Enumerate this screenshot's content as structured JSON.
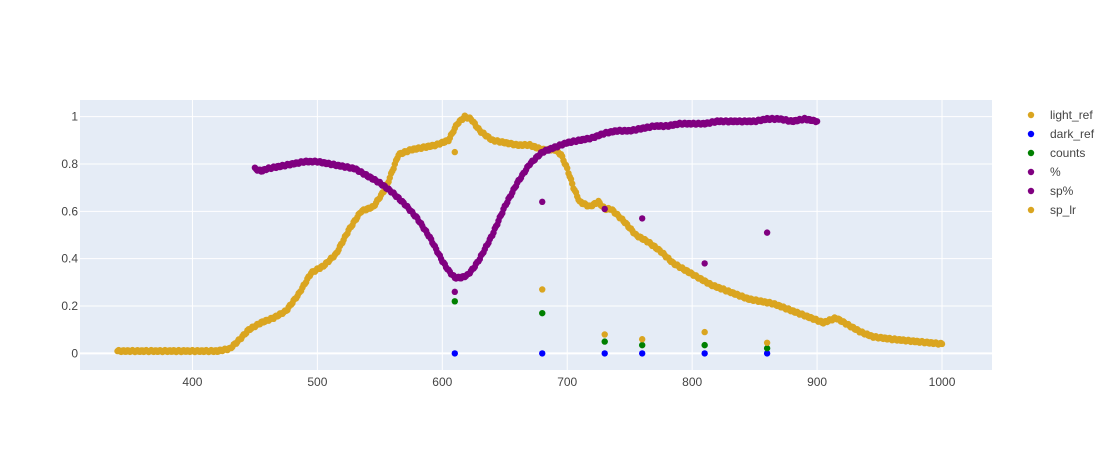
{
  "chart_data": {
    "type": "scatter",
    "title": "",
    "xlabel": "",
    "ylabel": "",
    "xlim": [
      310,
      1040
    ],
    "ylim": [
      -0.07,
      1.07
    ],
    "grid": true,
    "legend_position": "top-right",
    "x_ticks": [
      400,
      500,
      600,
      700,
      800,
      900,
      1000
    ],
    "y_ticks": [
      0,
      0.2,
      0.4,
      0.6,
      0.8,
      1
    ],
    "x_tick_labels": [
      "400",
      "500",
      "600",
      "700",
      "800",
      "900",
      "1000"
    ],
    "y_tick_labels": [
      "0",
      "0.2",
      "0.4",
      "0.6",
      "0.8",
      "1"
    ],
    "series": [
      {
        "name": "light_ref",
        "color": "#DAA520",
        "dense": true,
        "x": [
          340,
          380,
          420,
          430,
          438,
          445,
          455,
          465,
          475,
          485,
          495,
          505,
          515,
          525,
          535,
          545,
          555,
          565,
          575,
          585,
          595,
          605,
          612,
          618,
          623,
          630,
          640,
          650,
          660,
          670,
          680,
          690,
          695,
          700,
          705,
          710,
          718,
          725,
          730,
          735,
          745,
          755,
          765,
          775,
          785,
          795,
          805,
          815,
          825,
          835,
          845,
          855,
          865,
          875,
          885,
          895,
          905,
          915,
          925,
          935,
          945,
          960,
          980,
          1000
        ],
        "y": [
          0.01,
          0.01,
          0.01,
          0.02,
          0.06,
          0.1,
          0.13,
          0.15,
          0.18,
          0.25,
          0.34,
          0.37,
          0.42,
          0.52,
          0.6,
          0.62,
          0.7,
          0.84,
          0.86,
          0.87,
          0.88,
          0.9,
          0.97,
          1.0,
          0.99,
          0.94,
          0.9,
          0.89,
          0.88,
          0.88,
          0.86,
          0.86,
          0.84,
          0.78,
          0.7,
          0.64,
          0.62,
          0.64,
          0.61,
          0.61,
          0.56,
          0.5,
          0.47,
          0.43,
          0.38,
          0.35,
          0.32,
          0.29,
          0.27,
          0.25,
          0.23,
          0.22,
          0.21,
          0.19,
          0.17,
          0.15,
          0.13,
          0.15,
          0.12,
          0.09,
          0.07,
          0.06,
          0.05,
          0.04
        ]
      },
      {
        "name": "dark_ref",
        "color": "#0000FF",
        "dense": false,
        "x": [
          610,
          680,
          730,
          760,
          810,
          860
        ],
        "y": [
          0.0,
          0.0,
          0.0,
          0.0,
          0.0,
          0.0
        ]
      },
      {
        "name": "counts",
        "color": "#008000",
        "dense": false,
        "x": [
          610,
          680,
          730,
          760,
          810,
          860
        ],
        "y": [
          0.22,
          0.17,
          0.05,
          0.035,
          0.035,
          0.022
        ]
      },
      {
        "name": "%",
        "color": "#800080",
        "dense": true,
        "x": [
          450,
          455,
          460,
          470,
          480,
          490,
          500,
          510,
          520,
          530,
          540,
          550,
          560,
          570,
          580,
          590,
          600,
          605,
          610,
          615,
          620,
          625,
          630,
          640,
          650,
          660,
          670,
          680,
          690,
          700,
          710,
          720,
          730,
          740,
          750,
          760,
          770,
          780,
          790,
          800,
          810,
          820,
          830,
          840,
          850,
          860,
          870,
          880,
          890,
          900
        ],
        "y": [
          0.78,
          0.77,
          0.78,
          0.79,
          0.8,
          0.81,
          0.81,
          0.8,
          0.79,
          0.78,
          0.75,
          0.72,
          0.68,
          0.63,
          0.57,
          0.49,
          0.39,
          0.35,
          0.32,
          0.32,
          0.33,
          0.36,
          0.4,
          0.5,
          0.62,
          0.72,
          0.8,
          0.85,
          0.87,
          0.89,
          0.9,
          0.91,
          0.93,
          0.94,
          0.94,
          0.95,
          0.96,
          0.96,
          0.97,
          0.97,
          0.97,
          0.98,
          0.98,
          0.98,
          0.98,
          0.99,
          0.99,
          0.98,
          0.99,
          0.98
        ]
      },
      {
        "name": "sp%",
        "color": "#800080",
        "dense": false,
        "x": [
          610,
          680,
          730,
          760,
          810,
          860
        ],
        "y": [
          0.26,
          0.64,
          0.61,
          0.57,
          0.38,
          0.51
        ]
      },
      {
        "name": "sp_lr",
        "color": "#DAA520",
        "dense": false,
        "x": [
          610,
          680,
          730,
          760,
          810,
          860
        ],
        "y": [
          0.85,
          0.27,
          0.08,
          0.06,
          0.09,
          0.045
        ]
      }
    ]
  }
}
